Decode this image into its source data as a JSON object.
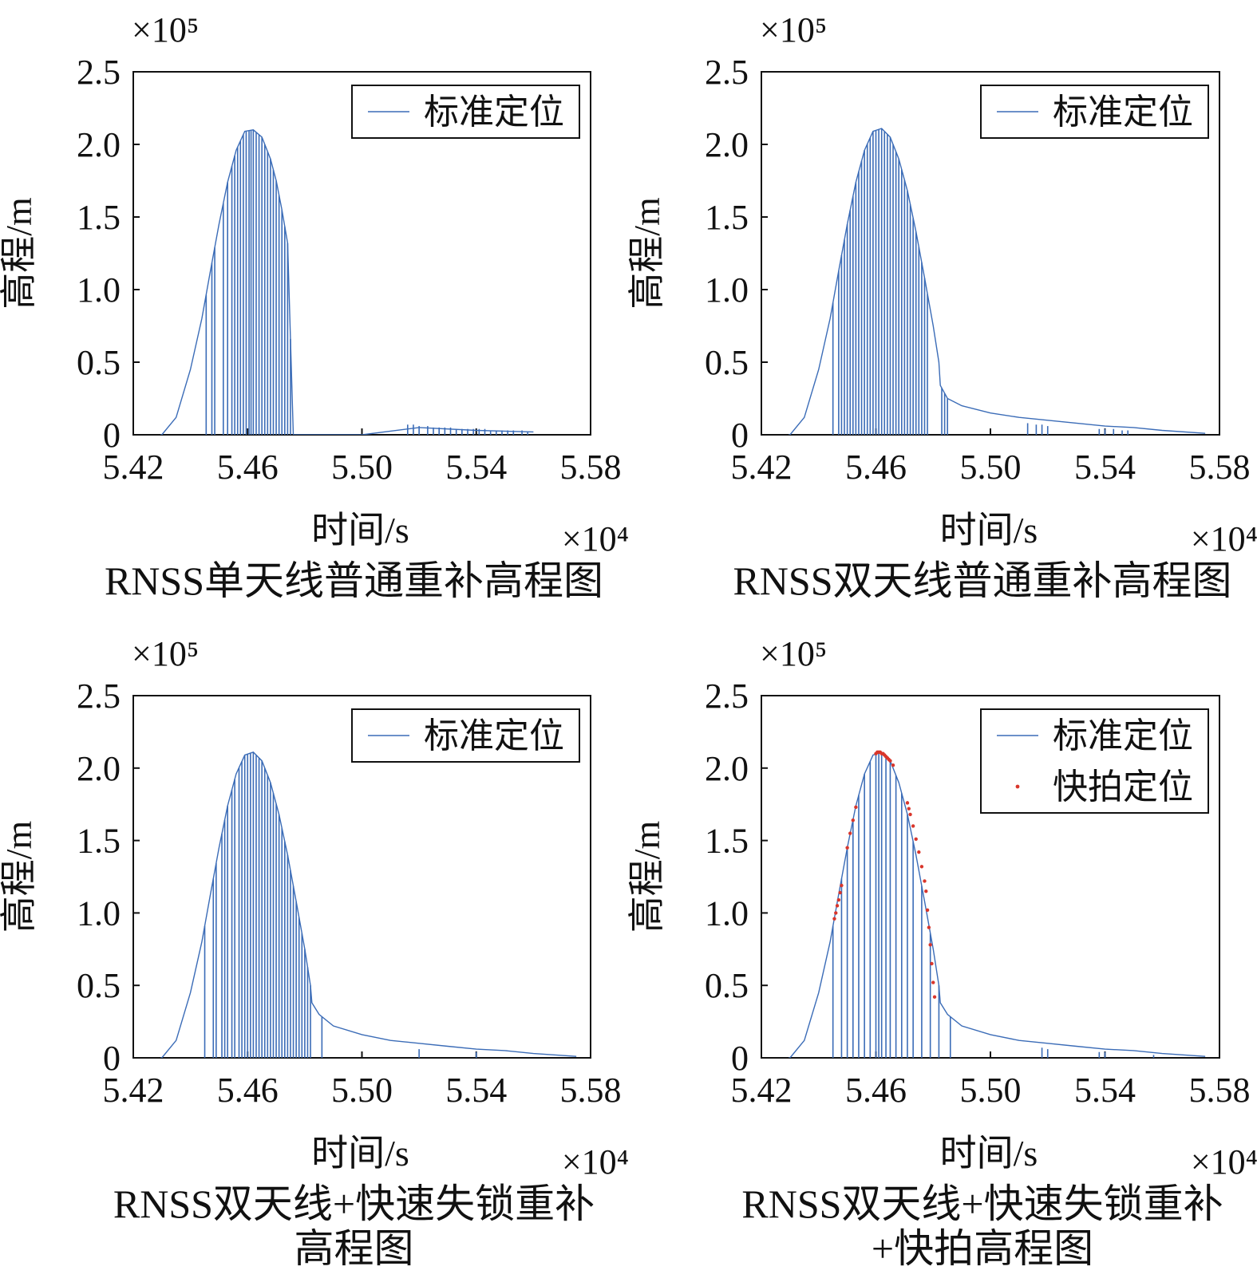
{
  "figure_panels": [
    {
      "caption": [
        "RNSS单天线普通重补高程图"
      ],
      "xlabel": "时间/s",
      "ylabel": "高程/m",
      "x_multiplier": "×10⁴",
      "y_multiplier": "×10⁵",
      "legend": [
        "标准定位"
      ]
    },
    {
      "caption": [
        "RNSS双天线普通重补高程图"
      ],
      "xlabel": "时间/s",
      "ylabel": "高程/m",
      "x_multiplier": "×10⁴",
      "y_multiplier": "×10⁵",
      "legend": [
        "标准定位"
      ]
    },
    {
      "caption": [
        "RNSS双天线+快速失锁重补",
        "高程图"
      ],
      "xlabel": "时间/s",
      "ylabel": "高程/m",
      "x_multiplier": "×10⁴",
      "y_multiplier": "×10⁵",
      "legend": [
        "标准定位"
      ]
    },
    {
      "caption": [
        "RNSS双天线+快速失锁重补",
        "+快拍高程图"
      ],
      "xlabel": "时间/s",
      "ylabel": "高程/m",
      "x_multiplier": "×10⁴",
      "y_multiplier": "×10⁵",
      "legend": [
        "标准定位",
        "快拍定位"
      ]
    }
  ],
  "colors": {
    "standard": "#3b6cb7",
    "snapshot": "#d9362b",
    "axis": "#111111"
  },
  "chart_data": [
    {
      "type": "line",
      "x_ticks": [
        "5.42",
        "5.46",
        "5.50",
        "5.54",
        "5.58"
      ],
      "y_ticks": [
        "0",
        "0.5",
        "1.0",
        "1.5",
        "2.0",
        "2.5"
      ],
      "xlim": [
        5.42,
        5.58
      ],
      "ylim": [
        0,
        2.5
      ],
      "legend_position": "top-right",
      "series": [
        {
          "name": "标准定位",
          "profile": "ascent_only",
          "x": [
            5.43,
            5.435,
            5.44,
            5.444,
            5.447,
            5.45,
            5.453,
            5.456,
            5.459,
            5.462,
            5.465,
            5.468,
            5.47,
            5.472,
            5.474,
            5.476,
            5.5,
            5.52,
            5.54,
            5.56
          ],
          "y": [
            0.0,
            0.12,
            0.45,
            0.8,
            1.13,
            1.45,
            1.74,
            1.96,
            2.09,
            2.1,
            2.05,
            1.9,
            1.75,
            1.55,
            1.32,
            0.0,
            0.0,
            0.05,
            0.03,
            0.02
          ],
          "gap_x": [
            5.4455,
            5.4475,
            5.4485,
            5.4515,
            5.453,
            5.4545,
            5.4555,
            5.4565,
            5.4575,
            5.4585,
            5.4595,
            5.4605,
            5.4612,
            5.462,
            5.463,
            5.464,
            5.465,
            5.466,
            5.467,
            5.468,
            5.469,
            5.47,
            5.471,
            5.472,
            5.473,
            5.474,
            5.475
          ],
          "tail_spikes": [
            [
              5.516,
              0.07
            ],
            [
              5.518,
              0.07
            ],
            [
              5.52,
              0.06
            ],
            [
              5.523,
              0.06
            ],
            [
              5.525,
              0.05
            ],
            [
              5.527,
              0.05
            ],
            [
              5.529,
              0.05
            ],
            [
              5.531,
              0.05
            ],
            [
              5.533,
              0.04
            ],
            [
              5.535,
              0.04
            ],
            [
              5.537,
              0.04
            ],
            [
              5.539,
              0.04
            ],
            [
              5.541,
              0.04
            ],
            [
              5.543,
              0.04
            ],
            [
              5.545,
              0.03
            ],
            [
              5.547,
              0.03
            ],
            [
              5.549,
              0.03
            ],
            [
              5.551,
              0.03
            ],
            [
              5.553,
              0.03
            ],
            [
              5.556,
              0.03
            ],
            [
              5.558,
              0.02
            ]
          ]
        }
      ]
    },
    {
      "type": "line",
      "x_ticks": [
        "5.42",
        "5.46",
        "5.50",
        "5.54",
        "5.58"
      ],
      "y_ticks": [
        "0",
        "0.5",
        "1.0",
        "1.5",
        "2.0",
        "2.5"
      ],
      "xlim": [
        5.42,
        5.58
      ],
      "ylim": [
        0,
        2.5
      ],
      "legend_position": "top-right",
      "series": [
        {
          "name": "标准定位",
          "x": [
            5.43,
            5.435,
            5.44,
            5.444,
            5.447,
            5.45,
            5.453,
            5.456,
            5.459,
            5.462,
            5.465,
            5.468,
            5.471,
            5.474,
            5.477,
            5.48,
            5.482,
            5.4825,
            5.485,
            5.49,
            5.5,
            5.51,
            5.52,
            5.53,
            5.54,
            5.55,
            5.56,
            5.575
          ],
          "y": [
            0.0,
            0.12,
            0.45,
            0.8,
            1.13,
            1.45,
            1.74,
            1.96,
            2.09,
            2.11,
            2.05,
            1.9,
            1.68,
            1.4,
            1.08,
            0.75,
            0.5,
            0.34,
            0.25,
            0.2,
            0.15,
            0.12,
            0.1,
            0.08,
            0.06,
            0.05,
            0.03,
            0.01
          ],
          "gap_x": [
            5.445,
            5.447,
            5.448,
            5.449,
            5.45,
            5.451,
            5.452,
            5.453,
            5.454,
            5.455,
            5.456,
            5.457,
            5.458,
            5.459,
            5.46,
            5.461,
            5.462,
            5.463,
            5.464,
            5.465,
            5.466,
            5.467,
            5.468,
            5.469,
            5.47,
            5.471,
            5.472,
            5.473,
            5.474,
            5.475,
            5.476,
            5.477,
            5.478,
            5.483,
            5.484,
            5.485
          ],
          "tail_spikes": [
            [
              5.513,
              0.08
            ],
            [
              5.516,
              0.07
            ],
            [
              5.518,
              0.07
            ],
            [
              5.52,
              0.06
            ],
            [
              5.538,
              0.04
            ],
            [
              5.54,
              0.04
            ],
            [
              5.543,
              0.04
            ],
            [
              5.546,
              0.03
            ],
            [
              5.548,
              0.03
            ]
          ]
        }
      ]
    },
    {
      "type": "line",
      "x_ticks": [
        "5.42",
        "5.46",
        "5.50",
        "5.54",
        "5.58"
      ],
      "y_ticks": [
        "0",
        "0.5",
        "1.0",
        "1.5",
        "2.0",
        "2.5"
      ],
      "xlim": [
        5.42,
        5.58
      ],
      "ylim": [
        0,
        2.5
      ],
      "legend_position": "top-right",
      "series": [
        {
          "name": "标准定位",
          "x": [
            5.43,
            5.435,
            5.44,
            5.444,
            5.447,
            5.45,
            5.453,
            5.456,
            5.459,
            5.462,
            5.465,
            5.468,
            5.471,
            5.474,
            5.477,
            5.48,
            5.482,
            5.4825,
            5.485,
            5.49,
            5.5,
            5.51,
            5.52,
            5.53,
            5.54,
            5.55,
            5.56,
            5.575
          ],
          "y": [
            0.0,
            0.12,
            0.45,
            0.8,
            1.13,
            1.45,
            1.74,
            1.96,
            2.09,
            2.11,
            2.05,
            1.9,
            1.68,
            1.4,
            1.08,
            0.75,
            0.5,
            0.38,
            0.3,
            0.22,
            0.16,
            0.12,
            0.1,
            0.08,
            0.06,
            0.05,
            0.03,
            0.01
          ],
          "gap_x": [
            5.445,
            5.448,
            5.449,
            5.451,
            5.452,
            5.453,
            5.4545,
            5.4555,
            5.457,
            5.458,
            5.459,
            5.46,
            5.461,
            5.462,
            5.463,
            5.464,
            5.465,
            5.466,
            5.467,
            5.468,
            5.469,
            5.47,
            5.471,
            5.472,
            5.473,
            5.474,
            5.475,
            5.476,
            5.477,
            5.478,
            5.479,
            5.48,
            5.481,
            5.482,
            5.486
          ],
          "tail_spikes": [
            [
              5.52,
              0.06
            ],
            [
              5.54,
              0.04
            ]
          ]
        }
      ]
    },
    {
      "type": "line",
      "x_ticks": [
        "5.42",
        "5.46",
        "5.50",
        "5.54",
        "5.58"
      ],
      "y_ticks": [
        "0",
        "0.5",
        "1.0",
        "1.5",
        "2.0",
        "2.5"
      ],
      "xlim": [
        5.42,
        5.58
      ],
      "ylim": [
        0,
        2.5
      ],
      "legend_position": "top-right",
      "series": [
        {
          "name": "标准定位",
          "x": [
            5.43,
            5.435,
            5.44,
            5.444,
            5.447,
            5.45,
            5.453,
            5.456,
            5.459,
            5.462,
            5.465,
            5.468,
            5.471,
            5.474,
            5.477,
            5.48,
            5.482,
            5.4825,
            5.485,
            5.49,
            5.5,
            5.51,
            5.52,
            5.53,
            5.54,
            5.55,
            5.56,
            5.575
          ],
          "y": [
            0.0,
            0.12,
            0.45,
            0.8,
            1.13,
            1.45,
            1.74,
            1.96,
            2.09,
            2.11,
            2.05,
            1.9,
            1.68,
            1.4,
            1.08,
            0.75,
            0.5,
            0.38,
            0.3,
            0.22,
            0.16,
            0.12,
            0.1,
            0.08,
            0.06,
            0.05,
            0.03,
            0.01
          ],
          "gap_x": [
            5.445,
            5.448,
            5.45,
            5.452,
            5.454,
            5.456,
            5.458,
            5.46,
            5.461,
            5.462,
            5.4635,
            5.465,
            5.467,
            5.469,
            5.471,
            5.473,
            5.476,
            5.479,
            5.482,
            5.486
          ],
          "tail_spikes": [
            [
              5.518,
              0.07
            ],
            [
              5.52,
              0.06
            ],
            [
              5.538,
              0.04
            ],
            [
              5.54,
              0.04
            ],
            [
              5.557,
              0.02
            ]
          ]
        },
        {
          "name": "快拍定位",
          "type": "scatter",
          "x": [
            5.4455,
            5.446,
            5.4465,
            5.447,
            5.4475,
            5.448,
            5.45,
            5.451,
            5.452,
            5.453,
            5.46,
            5.4605,
            5.461,
            5.4615,
            5.462,
            5.4625,
            5.463,
            5.4635,
            5.464,
            5.4645,
            5.465,
            5.466,
            5.471,
            5.4715,
            5.472,
            5.473,
            5.474,
            5.475,
            5.476,
            5.477,
            5.4775,
            5.478,
            5.4785,
            5.479,
            5.4795,
            5.48,
            5.4805
          ],
          "y": [
            0.96,
            1.0,
            1.05,
            1.09,
            1.14,
            1.19,
            1.45,
            1.55,
            1.64,
            1.73,
            2.1,
            2.11,
            2.11,
            2.11,
            2.1,
            2.1,
            2.09,
            2.08,
            2.07,
            2.06,
            2.05,
            2.02,
            1.76,
            1.72,
            1.68,
            1.6,
            1.51,
            1.42,
            1.32,
            1.22,
            1.15,
            1.02,
            0.9,
            0.78,
            0.65,
            0.52,
            0.42
          ]
        }
      ]
    }
  ]
}
